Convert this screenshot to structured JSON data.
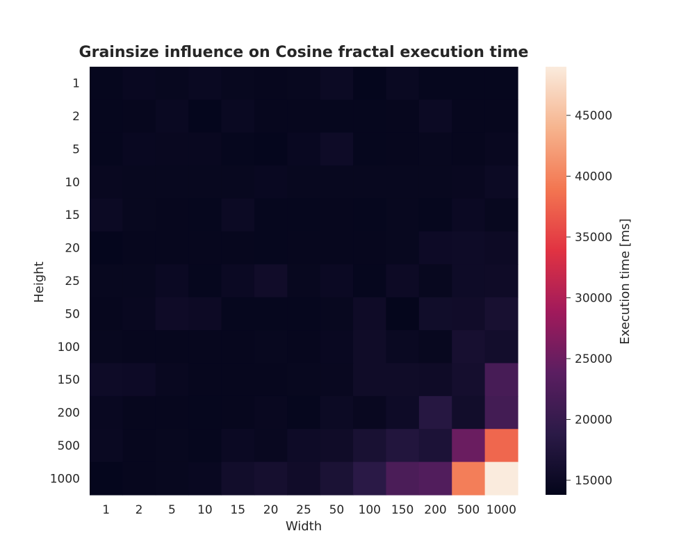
{
  "chart_data": {
    "type": "heatmap",
    "title": "Grainsize influence on Cosine fractal execution time",
    "xlabel": "Width",
    "ylabel": "Height",
    "x": [
      "1",
      "2",
      "5",
      "10",
      "15",
      "20",
      "25",
      "50",
      "100",
      "150",
      "200",
      "500",
      "1000"
    ],
    "y": [
      "1",
      "2",
      "5",
      "10",
      "15",
      "20",
      "25",
      "50",
      "100",
      "150",
      "200",
      "500",
      "1000"
    ],
    "values": [
      [
        14200,
        14600,
        14400,
        14700,
        14400,
        14300,
        14400,
        14900,
        14100,
        14700,
        14200,
        14200,
        14200
      ],
      [
        14200,
        14300,
        14700,
        14100,
        14700,
        14300,
        14300,
        14200,
        14200,
        14300,
        14900,
        14300,
        14300
      ],
      [
        14200,
        14600,
        14500,
        14500,
        14200,
        14100,
        14600,
        15200,
        14200,
        14300,
        14400,
        14300,
        14500
      ],
      [
        14500,
        14400,
        14400,
        14400,
        14400,
        14600,
        14400,
        14400,
        14400,
        14400,
        14400,
        14500,
        14900
      ],
      [
        14900,
        14400,
        14300,
        14200,
        14900,
        14200,
        14200,
        14300,
        14200,
        14400,
        14200,
        14800,
        14400
      ],
      [
        14100,
        14300,
        14300,
        14300,
        14300,
        14200,
        14300,
        14300,
        14300,
        14400,
        15100,
        15200,
        15000
      ],
      [
        14400,
        14400,
        14800,
        14200,
        14800,
        15500,
        14400,
        14800,
        14200,
        15000,
        14400,
        15200,
        15300
      ],
      [
        14300,
        14500,
        15300,
        15000,
        14200,
        14200,
        14200,
        14400,
        15300,
        14000,
        15600,
        15500,
        16400
      ],
      [
        14400,
        14300,
        14300,
        14300,
        14300,
        14400,
        14300,
        14600,
        15400,
        14700,
        14400,
        16300,
        15800
      ],
      [
        15200,
        15100,
        14500,
        14300,
        14300,
        14300,
        14400,
        14500,
        15400,
        15400,
        15300,
        16000,
        21800
      ],
      [
        14600,
        14300,
        14300,
        14200,
        14300,
        14500,
        14200,
        14900,
        14500,
        15200,
        18200,
        15700,
        21300
      ],
      [
        14700,
        14300,
        14400,
        14200,
        14800,
        14500,
        15200,
        15400,
        16600,
        17700,
        17000,
        24900,
        37800
      ],
      [
        14100,
        14300,
        14400,
        14600,
        15700,
        16200,
        15500,
        16800,
        18700,
        22200,
        22800,
        39600,
        49000
      ]
    ],
    "colorbar": {
      "label": "Execution time [ms]",
      "min": 13800,
      "max": 49000,
      "ticks": [
        15000,
        20000,
        25000,
        30000,
        35000,
        40000,
        45000
      ]
    },
    "colormap": [
      "#03051a",
      "#2b1a47",
      "#5b1e61",
      "#a11a5b",
      "#e13342",
      "#f37651",
      "#f6b48e",
      "#faebdd"
    ]
  }
}
